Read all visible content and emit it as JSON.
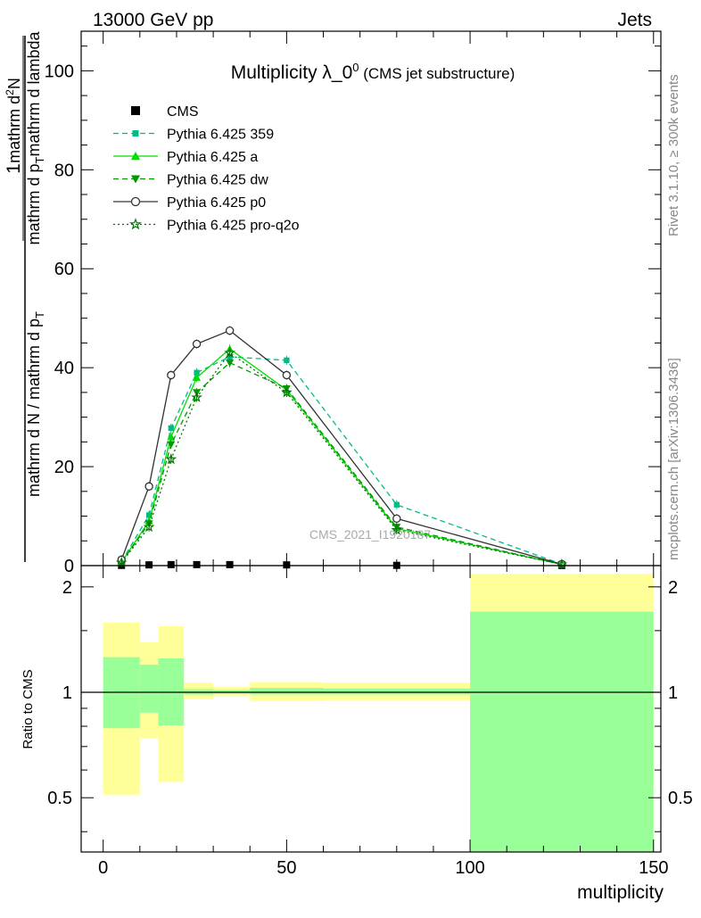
{
  "header": {
    "left": "13000 GeV pp",
    "right": "Jets"
  },
  "side_labels": {
    "rivet": "Rivet 3.1.10, ≥ 300k events",
    "site": "mcplots.cern.ch [arXiv:1306.3436]"
  },
  "chart_data": [
    {
      "type": "line",
      "title": "Multiplicity λ_0",
      "title_sup": "0",
      "subtitle": "(CMS jet substructure)",
      "watermark": "CMS_2021_I1920187",
      "ylabel": {
        "numerator": "1",
        "denominator": "mathrm d N / mathrm d p",
        "denominator_sub": "T",
        "numerator2": "mathrm d",
        "numerator2_sup": "2",
        "numerator2_tail": "N",
        "denominator2": "mathrm d p",
        "denominator2_sub": "T",
        "denominator2_tail": "mathrm d lambda"
      },
      "xlim": [
        -6,
        152
      ],
      "ylim": [
        0,
        108
      ],
      "yticks": [
        0,
        20,
        40,
        60,
        80,
        100
      ],
      "yticklabels": [
        "0",
        "20",
        "40",
        "60",
        "80",
        "100"
      ],
      "legend_position": "top-left",
      "series": [
        {
          "name": "CMS",
          "color": "#000000",
          "marker": "square",
          "x": [
            5,
            12.5,
            18.5,
            25.5,
            34.5,
            50,
            80,
            125
          ],
          "y": [
            0.05,
            0.15,
            0.2,
            0.2,
            0.2,
            0.15,
            0.05,
            0.02
          ]
        },
        {
          "name": "Pythia 6.425 359",
          "color": "#00bb88",
          "marker": "small-square",
          "dash": "dashed",
          "x": [
            5,
            12.5,
            18.5,
            25.5,
            34.5,
            50,
            80,
            125
          ],
          "y": [
            0.8,
            10.2,
            27.8,
            39.0,
            42.2,
            41.5,
            12.3,
            0.3
          ]
        },
        {
          "name": "Pythia 6.425 a",
          "color": "#00dd00",
          "marker": "triangle-up",
          "dash": "solid",
          "x": [
            5,
            12.5,
            18.5,
            25.5,
            34.5,
            50,
            80,
            125
          ],
          "y": [
            0.7,
            9.0,
            26.0,
            38.0,
            43.8,
            35.5,
            7.5,
            0.25
          ]
        },
        {
          "name": "Pythia 6.425 dw",
          "color": "#009900",
          "marker": "triangle-down",
          "dash": "dashed",
          "x": [
            5,
            12.5,
            18.5,
            25.5,
            34.5,
            50,
            80,
            125
          ],
          "y": [
            0.7,
            8.5,
            24.5,
            35.0,
            41.0,
            35.8,
            7.8,
            0.25
          ]
        },
        {
          "name": "Pythia 6.425 p0",
          "color": "#333333",
          "marker": "open-circle",
          "dash": "solid",
          "x": [
            5,
            12.5,
            18.5,
            25.5,
            34.5,
            50,
            80,
            125
          ],
          "y": [
            1.2,
            16.0,
            38.5,
            44.8,
            47.5,
            38.5,
            9.5,
            0.3
          ]
        },
        {
          "name": "Pythia 6.425 pro-q2o",
          "color": "#007700",
          "marker": "open-star",
          "dash": "dotted",
          "x": [
            5,
            12.5,
            18.5,
            25.5,
            34.5,
            50,
            80,
            125
          ],
          "y": [
            0.6,
            7.8,
            21.5,
            34.0,
            43.0,
            35.0,
            7.2,
            0.25
          ]
        }
      ]
    },
    {
      "type": "area",
      "ylabel": "Ratio to CMS",
      "xlabel": "multiplicity",
      "xlim": [
        -6,
        152
      ],
      "xticks": [
        0,
        50,
        100,
        150
      ],
      "xticklabels": [
        "0",
        "50",
        "100",
        "150"
      ],
      "ylim": [
        0.35,
        2.3
      ],
      "yticks": [
        0.5,
        1,
        2
      ],
      "yticklabels": [
        "0.5",
        "1",
        "2"
      ],
      "reference": 1,
      "bands": [
        {
          "x0": 0,
          "x1": 10,
          "stat_lo": 0.79,
          "stat_hi": 1.26,
          "tot_lo": 0.51,
          "tot_hi": 1.58
        },
        {
          "x0": 10,
          "x1": 15,
          "stat_lo": 0.875,
          "stat_hi": 1.2,
          "tot_lo": 0.74,
          "tot_hi": 1.39
        },
        {
          "x0": 15,
          "x1": 22,
          "stat_lo": 0.805,
          "stat_hi": 1.25,
          "tot_lo": 0.555,
          "tot_hi": 1.545
        },
        {
          "x0": 22,
          "x1": 30,
          "stat_lo": 0.985,
          "stat_hi": 1.02,
          "tot_lo": 0.955,
          "tot_hi": 1.065
        },
        {
          "x0": 30,
          "x1": 40,
          "stat_lo": 0.99,
          "stat_hi": 1.015,
          "tot_lo": 0.975,
          "tot_hi": 1.035
        },
        {
          "x0": 40,
          "x1": 60,
          "stat_lo": 0.985,
          "stat_hi": 1.03,
          "tot_lo": 0.945,
          "tot_hi": 1.07
        },
        {
          "x0": 60,
          "x1": 100,
          "stat_lo": 0.985,
          "stat_hi": 1.025,
          "tot_lo": 0.95,
          "tot_hi": 1.065
        },
        {
          "x0": 100,
          "x1": 150,
          "stat_lo": 0.3,
          "stat_hi": 1.7,
          "tot_lo": 0.3,
          "tot_hi": 2.18
        }
      ]
    }
  ],
  "colors": {
    "stat_band": "#99ff99",
    "total_band": "#ffff99"
  }
}
